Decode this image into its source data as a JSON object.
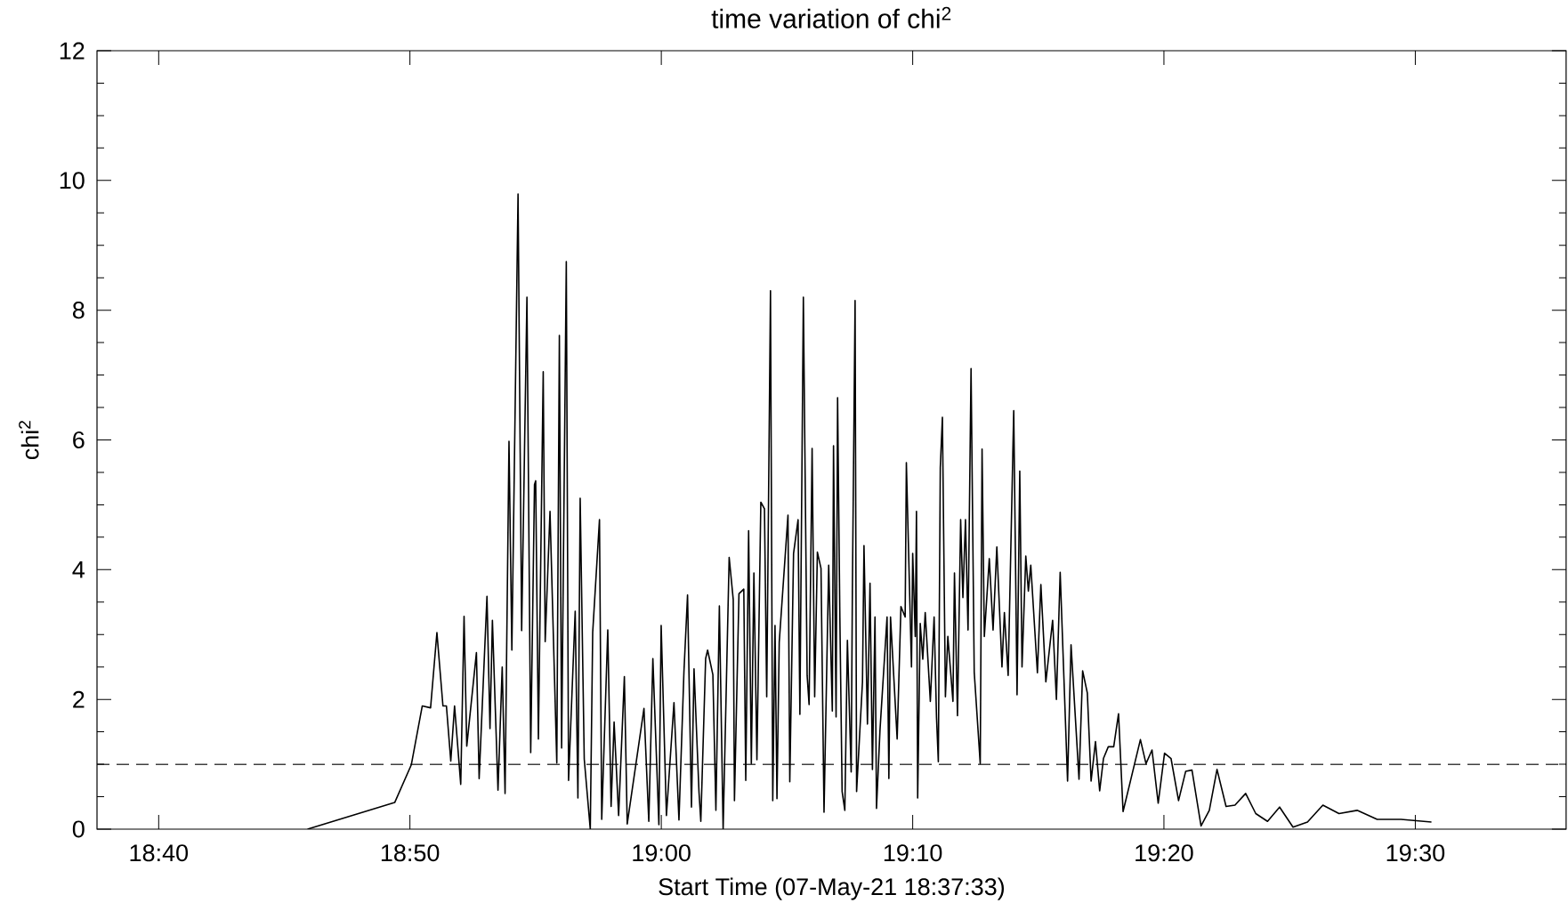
{
  "chart_data": {
    "type": "line",
    "title": "time variation of chi$^{2}$",
    "xlabel": "Start Time (07-May-21 18:37:33)",
    "ylabel": "chi$^{2}$",
    "color": "#000000",
    "x": [
      18.7654,
      18.8232,
      18.8342,
      18.8415,
      18.847,
      18.8512,
      18.8552,
      18.8575,
      18.8604,
      18.8629,
      18.867,
      18.8692,
      18.871,
      18.8774,
      18.8792,
      18.8844,
      18.8864,
      18.888,
      18.8917,
      18.8945,
      18.8964,
      18.899,
      18.9009,
      18.905,
      18.9074,
      18.9109,
      18.9134,
      18.9159,
      18.9167,
      18.9185,
      18.9217,
      18.923,
      18.9262,
      18.9307,
      18.9324,
      18.9339,
      18.937,
      18.9385,
      18.9429,
      18.9447,
      18.9462,
      18.9489,
      18.9529,
      18.9545,
      18.959,
      18.9605,
      18.9645,
      18.9667,
      18.9687,
      18.9717,
      18.9755,
      18.9774,
      18.9885,
      18.9917,
      18.9944,
      18.9984,
      18.9999,
      19.0034,
      19.0084,
      19.0117,
      19.015,
      19.0174,
      19.02,
      19.0217,
      19.025,
      19.0262,
      19.0294,
      19.0307,
      19.0342,
      19.0362,
      19.0385,
      19.041,
      19.045,
      19.0477,
      19.0485,
      19.0515,
      19.0547,
      19.056,
      19.0579,
      19.0597,
      19.0614,
      19.0634,
      19.066,
      19.0684,
      19.0699,
      19.0724,
      19.0739,
      19.0754,
      19.0767,
      19.0782,
      19.084,
      19.0852,
      19.0877,
      19.0907,
      19.0919,
      19.0942,
      19.0967,
      19.098,
      19.1,
      19.1017,
      19.1035,
      19.1059,
      19.1079,
      19.111,
      19.1134,
      19.1142,
      19.1159,
      19.1169,
      19.1184,
      19.1199,
      19.1217,
      19.1234,
      19.1259,
      19.1267,
      19.1285,
      19.1295,
      19.1334,
      19.1344,
      19.1367,
      19.1384,
      19.14,
      19.1417,
      19.1427,
      19.145,
      19.1497,
      19.1509,
      19.152,
      19.1564,
      19.1589,
      19.1617,
      19.1625,
      19.1659,
      19.1667,
      19.1684,
      19.1692,
      19.17,
      19.1717,
      19.1734,
      19.175,
      19.1784,
      19.1809,
      19.1825,
      19.1837,
      19.185,
      19.1864,
      19.1884,
      19.19,
      19.1934,
      19.1944,
      19.1964,
      19.1985,
      19.2,
      19.2017,
      19.2034,
      19.2054,
      19.2075,
      19.2115,
      19.2127,
      19.2142,
      19.2175,
      19.22,
      19.2225,
      19.2259,
      19.2275,
      19.23,
      19.2337,
      19.2359,
      19.2377,
      19.2392,
      19.2417,
      19.2434,
      19.245,
      19.2494,
      19.2517,
      19.255,
      19.2595,
      19.262,
      19.2645,
      19.2694,
      19.2717,
      19.277,
      19.2794,
      19.2825,
      19.285,
      19.2879,
      19.2907,
      19.2932,
      19.2964,
      19.3,
      19.3032,
      19.3062,
      19.3177,
      19.3214,
      19.3254,
      19.3295,
      19.3337,
      19.338,
      19.343,
      19.3477,
      19.3519,
      19.3579,
      19.3634,
      19.3685,
      19.3745,
      19.3804,
      19.3875,
      19.3942,
      19.402,
      19.41,
      19.4189,
      19.4285,
      19.4387,
      19.4494,
      19.4614,
      19.4747,
      19.4905,
      19.5107
    ],
    "values": [
      0,
      0.41,
      0.99,
      1.9,
      1.87,
      3.03,
      1.9,
      1.9,
      1.05,
      1.9,
      0.69,
      3.28,
      1.28,
      2.72,
      0.78,
      3.59,
      1.55,
      3.22,
      0.6,
      2.5,
      0.55,
      5.98,
      2.76,
      9.79,
      3.06,
      8.2,
      1.18,
      5.31,
      5.37,
      1.39,
      7.05,
      2.89,
      4.9,
      1.02,
      7.61,
      1.25,
      8.75,
      0.75,
      3.36,
      0.48,
      5.1,
      1.08,
      0,
      3.03,
      4.77,
      0.15,
      3.07,
      0.35,
      1.65,
      0.21,
      2.35,
      0.08,
      1.86,
      0.12,
      2.63,
      0.07,
      3.14,
      0.21,
      1.95,
      0.14,
      2.42,
      3.61,
      0.34,
      2.47,
      0.57,
      0.12,
      2.63,
      2.76,
      2.38,
      0.29,
      3.44,
      0,
      4.19,
      3.54,
      0.44,
      3.63,
      3.7,
      0.75,
      4.6,
      1.01,
      3.95,
      1.07,
      5.04,
      4.94,
      2.04,
      8.3,
      0.44,
      3.14,
      0.47,
      2.88,
      4.84,
      0.73,
      4.25,
      4.77,
      1.77,
      8.2,
      2.37,
      1.92,
      5.87,
      2.04,
      4.27,
      4.02,
      0.26,
      4.07,
      1.82,
      5.91,
      1.73,
      6.65,
      3.27,
      0.58,
      0.29,
      2.91,
      0.88,
      3.67,
      8.15,
      0.58,
      2.27,
      4.37,
      1.62,
      3.79,
      0.92,
      3.27,
      0.32,
      1.52,
      3.27,
      0.78,
      3.27,
      1.39,
      3.43,
      3.27,
      5.65,
      2.5,
      4.25,
      2.97,
      4.9,
      0.48,
      3.17,
      2.62,
      3.34,
      1.97,
      3.27,
      1.72,
      1.04,
      5.57,
      6.35,
      2.04,
      2.97,
      1.97,
      3.95,
      1.75,
      4.77,
      3.57,
      4.77,
      3.07,
      7.1,
      2.42,
      1.01,
      5.86,
      2.97,
      4.17,
      3.07,
      4.35,
      2.5,
      3.34,
      2.37,
      6.45,
      2.07,
      5.52,
      2.5,
      4.21,
      3.67,
      4.07,
      2.41,
      3.77,
      2.27,
      3.22,
      2.0,
      3.96,
      0.74,
      2.84,
      0.77,
      2.44,
      2.1,
      0.74,
      1.35,
      0.59,
      1.09,
      1.27,
      1.27,
      1.78,
      0.27,
      1.38,
      1.01,
      1.22,
      0.4,
      1.17,
      1.09,
      0.44,
      0.89,
      0.91,
      0.05,
      0.29,
      0.92,
      0.35,
      0.37,
      0.55,
      0.24,
      0.12,
      0.34,
      0.03,
      0.11,
      0.37,
      0.24,
      0.29,
      0.15,
      0.15,
      0.11
    ],
    "xlim": [
      18.6258,
      19.6
    ],
    "ylim": [
      0,
      12
    ],
    "xticks": [
      {
        "value": 18.6667,
        "label": "18:40"
      },
      {
        "value": 18.8333,
        "label": "18:50"
      },
      {
        "value": 19.0,
        "label": "19:00"
      },
      {
        "value": 19.1667,
        "label": "19:10"
      },
      {
        "value": 19.3333,
        "label": "19:20"
      },
      {
        "value": 19.5,
        "label": "19:30"
      }
    ],
    "yticks": [
      0,
      2,
      4,
      6,
      8,
      10,
      12
    ],
    "ref_lines": [
      {
        "axis": "y",
        "value": 1,
        "line_style": "dashed",
        "color": "#000000"
      }
    ]
  }
}
